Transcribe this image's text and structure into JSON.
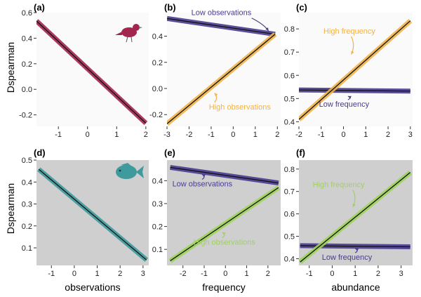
{
  "figure": {
    "ylabel_top": "Dspearman",
    "ylabel_bottom": "Dspearman"
  },
  "colors": {
    "bird_panel_bg": "#fafafa",
    "fish_panel_bg": "#cfcfcf",
    "magenta": "#a3264f",
    "purple": "#4b3b8f",
    "gold": "#f0b24a",
    "teal": "#3f9a9d",
    "green": "#9fd35a",
    "trend_line": "#111111"
  },
  "icons": {
    "bird": "bird-silhouette-icon",
    "fish": "fish-silhouette-icon"
  },
  "chart_data": [
    {
      "id": "a",
      "panel_label": "(a)",
      "type": "line",
      "icon": "bird",
      "xlim": [
        -1.75,
        2.1
      ],
      "ylim": [
        -0.29,
        0.6
      ],
      "xticks": [
        -1,
        0,
        1,
        2
      ],
      "yticks": [
        -0.2,
        0.0,
        0.2,
        0.4,
        0.6
      ],
      "xtick_labels": [
        "-1",
        "0",
        "1",
        "2"
      ],
      "ytick_labels": [
        "-0.2",
        "0.0",
        "0.2",
        "0.4",
        "0.6"
      ],
      "xlabel": "",
      "series": [
        {
          "color": "magenta",
          "x": [
            -1.75,
            2.0
          ],
          "y": [
            0.535,
            -0.265
          ]
        }
      ],
      "annotations": []
    },
    {
      "id": "b",
      "panel_label": "(b)",
      "type": "line",
      "xlim": [
        -3.0,
        2.15
      ],
      "ylim": [
        -0.29,
        0.58
      ],
      "xticks": [
        -3,
        -2,
        -1,
        0,
        1,
        2
      ],
      "yticks": [
        -0.2,
        0.0,
        0.2,
        0.4
      ],
      "xtick_labels": [
        "-3",
        "-2",
        "-1",
        "0",
        "1",
        "2"
      ],
      "ytick_labels": [
        "-0.2",
        "0.0",
        "0.2",
        "0.4"
      ],
      "xlabel": "",
      "series": [
        {
          "color": "purple",
          "x": [
            -3.0,
            1.9
          ],
          "y": [
            0.535,
            0.415
          ]
        },
        {
          "color": "gold",
          "x": [
            -3.0,
            1.9
          ],
          "y": [
            -0.27,
            0.415
          ]
        }
      ],
      "annotations": [
        {
          "text": "Low observations",
          "color": "purple",
          "tx": -1.9,
          "ty": 0.56,
          "ax": 1.6,
          "ay": 0.44
        },
        {
          "text": "High observations",
          "color": "gold",
          "tx": -1.1,
          "ty": -0.16,
          "ax": -0.85,
          "ay": -0.035
        }
      ]
    },
    {
      "id": "c",
      "panel_label": "(c)",
      "type": "line",
      "xlim": [
        -2.0,
        3.1
      ],
      "ylim": [
        0.38,
        0.87
      ],
      "xticks": [
        -2,
        -1,
        0,
        1,
        2,
        3
      ],
      "yticks": [
        0.4,
        0.5,
        0.6,
        0.7,
        0.8
      ],
      "xtick_labels": [
        "-2",
        "-1",
        "0",
        "1",
        "2",
        "3"
      ],
      "ytick_labels": [
        "0.4",
        "0.5",
        "0.6",
        "0.7",
        "0.8"
      ],
      "xlabel": "",
      "series": [
        {
          "color": "purple",
          "x": [
            -2.0,
            3.0
          ],
          "y": [
            0.537,
            0.532
          ]
        },
        {
          "color": "gold",
          "x": [
            -2.0,
            3.0
          ],
          "y": [
            0.41,
            0.835
          ]
        }
      ],
      "annotations": [
        {
          "text": "High frequency",
          "color": "gold",
          "tx": -0.9,
          "ty": 0.78,
          "ax": 0.35,
          "ay": 0.69
        },
        {
          "text": "Low frequency",
          "color": "purple",
          "tx": -1.1,
          "ty": 0.465,
          "ax": 0.2,
          "ay": 0.51
        }
      ]
    },
    {
      "id": "d",
      "panel_label": "(d)",
      "type": "line",
      "icon": "fish",
      "xlim": [
        -1.65,
        3.25
      ],
      "ylim": [
        0.02,
        0.5
      ],
      "xticks": [
        -1,
        0,
        1,
        2,
        3
      ],
      "yticks": [
        0.1,
        0.2,
        0.3,
        0.4,
        0.5
      ],
      "xtick_labels": [
        "-1",
        "0",
        "1",
        "2",
        "3"
      ],
      "ytick_labels": [
        "0.1",
        "0.2",
        "0.3",
        "0.4",
        "0.5"
      ],
      "xlabel": "observations",
      "series": [
        {
          "color": "teal",
          "x": [
            -1.55,
            3.15
          ],
          "y": [
            0.458,
            0.045
          ]
        }
      ],
      "annotations": []
    },
    {
      "id": "e",
      "panel_label": "(e)",
      "type": "line",
      "xlim": [
        -2.75,
        2.6
      ],
      "ylim": [
        0.03,
        0.49
      ],
      "xticks": [
        -2,
        -1,
        0,
        1,
        2
      ],
      "yticks": [
        0.1,
        0.2,
        0.3,
        0.4
      ],
      "xtick_labels": [
        "-2",
        "-1",
        "0",
        "1",
        "2"
      ],
      "ytick_labels": [
        "0.1",
        "0.2",
        "0.3",
        "0.4"
      ],
      "xlabel": "frequency",
      "series": [
        {
          "color": "purple",
          "x": [
            -2.6,
            2.5
          ],
          "y": [
            0.458,
            0.39
          ]
        },
        {
          "color": "green",
          "x": [
            -2.6,
            2.5
          ],
          "y": [
            0.05,
            0.37
          ]
        }
      ],
      "annotations": [
        {
          "text": "Low observations",
          "color": "purple",
          "tx": -2.5,
          "ty": 0.375,
          "ax": -1.1,
          "ay": 0.428
        },
        {
          "text": "High observations",
          "color": "green",
          "tx": -1.5,
          "ty": 0.12,
          "ax": -0.15,
          "ay": 0.175
        }
      ]
    },
    {
      "id": "f",
      "panel_label": "(f)",
      "type": "line",
      "xlim": [
        -1.45,
        3.5
      ],
      "ylim": [
        0.37,
        0.84
      ],
      "xticks": [
        -1,
        0,
        1,
        2,
        3
      ],
      "yticks": [
        0.4,
        0.5,
        0.6,
        0.7,
        0.8
      ],
      "xtick_labels": [
        "-1",
        "0",
        "1",
        "2",
        "3"
      ],
      "ytick_labels": [
        "0.4",
        "0.5",
        "0.6",
        "0.7",
        "0.8"
      ],
      "xlabel": "abundance",
      "series": [
        {
          "color": "purple",
          "x": [
            -1.4,
            3.4
          ],
          "y": [
            0.458,
            0.453
          ]
        },
        {
          "color": "green",
          "x": [
            -1.4,
            3.4
          ],
          "y": [
            0.385,
            0.785
          ]
        }
      ],
      "annotations": [
        {
          "text": "High frequency",
          "color": "green",
          "tx": -0.85,
          "ty": 0.72,
          "ax": 0.9,
          "ay": 0.63
        },
        {
          "text": "Low frequency",
          "color": "purple",
          "tx": -0.45,
          "ty": 0.395,
          "ax": 1.0,
          "ay": 0.446
        }
      ]
    }
  ]
}
